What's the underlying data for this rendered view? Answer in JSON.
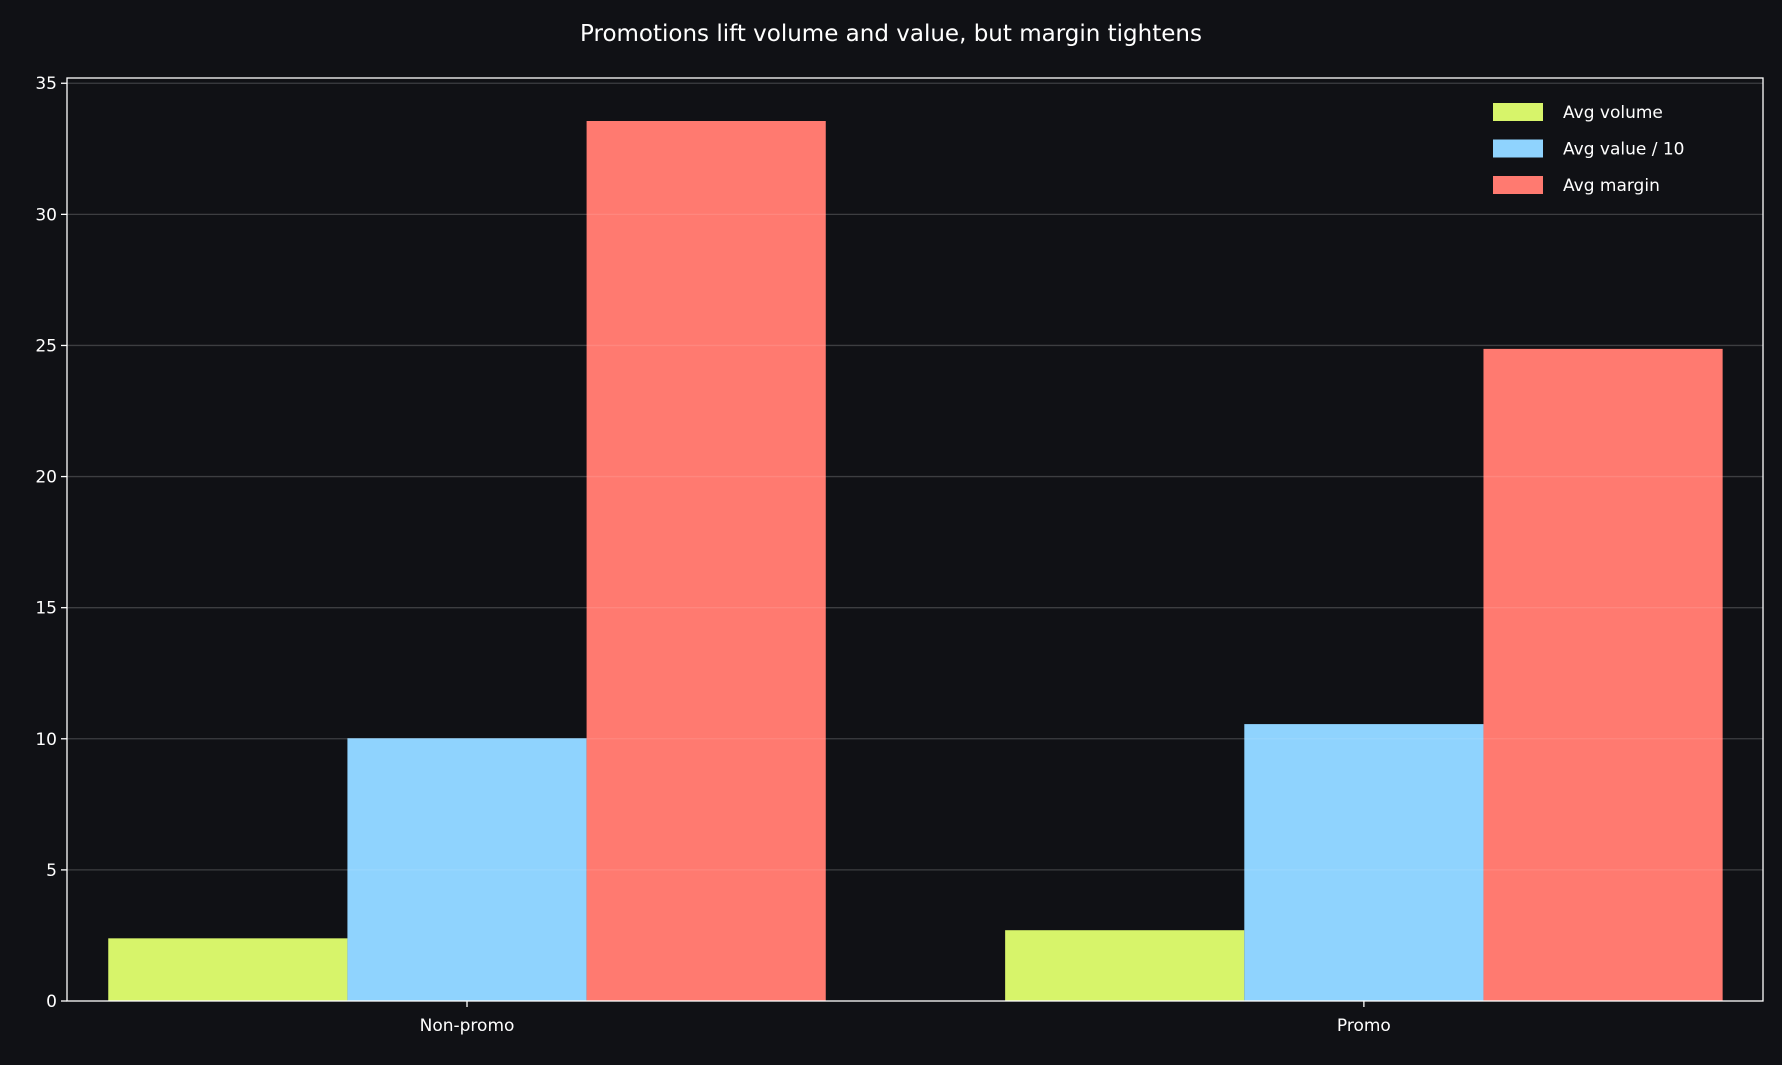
{
  "chart_data": {
    "type": "bar",
    "title": "Promotions lift volume and value, but margin tightens",
    "xlabel": "",
    "ylabel": "",
    "categories": [
      "Non-promo",
      "Promo"
    ],
    "series": [
      {
        "name": "Avg volume",
        "values": [
          2.39,
          2.7
        ],
        "color": "#d7f46a"
      },
      {
        "name": "Avg value / 10",
        "values": [
          10.02,
          10.56
        ],
        "color": "#8fd3fe"
      },
      {
        "name": "Avg margin",
        "values": [
          33.56,
          24.87
        ],
        "color": "#ff7a70"
      }
    ],
    "ylim": [
      0,
      35.2
    ],
    "yticks": [
      0,
      5,
      10,
      15,
      20,
      25,
      30,
      35
    ],
    "grid": true,
    "legend": "top-right",
    "background": "#101115",
    "text_color": "#ffffff"
  }
}
